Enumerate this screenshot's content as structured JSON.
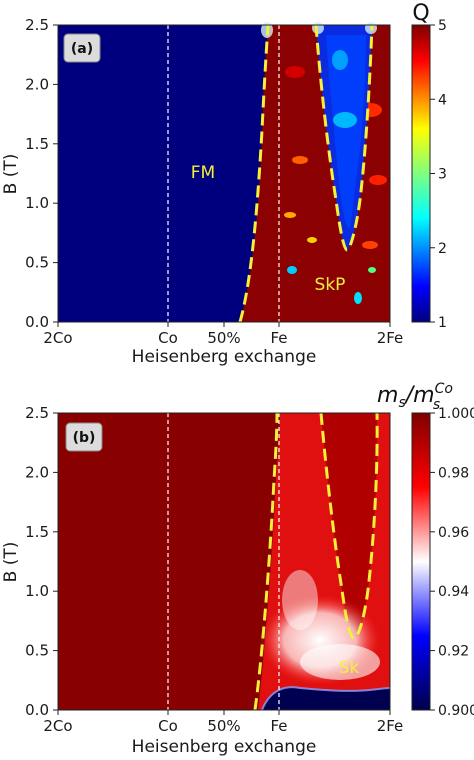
{
  "chart_data": [
    {
      "type": "heatmap",
      "panel": "(a)",
      "xlabel": "Heisenberg exchange",
      "ylabel": "B (T)",
      "x_ticks": [
        "2Co",
        "Co",
        "50%",
        "Fe",
        "2Fe"
      ],
      "y_ticks": [
        "0.0",
        "0.5",
        "1.0",
        "1.5",
        "2.0",
        "2.5"
      ],
      "ylim": [
        0,
        2.5
      ],
      "colorbar": {
        "title": "Q",
        "range": [
          1,
          5
        ],
        "ticks": [
          "5",
          "4",
          "3",
          "2",
          "1"
        ]
      },
      "regions": [
        {
          "label": "FM",
          "value": 1
        },
        {
          "label": "SkP",
          "value": 5
        }
      ]
    },
    {
      "type": "heatmap",
      "panel": "(b)",
      "xlabel": "Heisenberg exchange",
      "ylabel": "B (T)",
      "x_ticks": [
        "2Co",
        "Co",
        "50%",
        "Fe",
        "2Fe"
      ],
      "y_ticks": [
        "0.0",
        "0.5",
        "1.0",
        "1.5",
        "2.0",
        "2.5"
      ],
      "ylim": [
        0,
        2.5
      ],
      "colorbar": {
        "title_main": "m",
        "title_sub": "s",
        "title_den": "/m",
        "title_den_sup": "Co",
        "title_den_sub": "s",
        "range": [
          0.9,
          1.0
        ],
        "ticks": [
          "1.000",
          "0.98",
          "0.96",
          "0.94",
          "0.92",
          "0.900"
        ]
      },
      "regions": [
        {
          "label": "Sk",
          "value": 0.95
        }
      ]
    }
  ]
}
